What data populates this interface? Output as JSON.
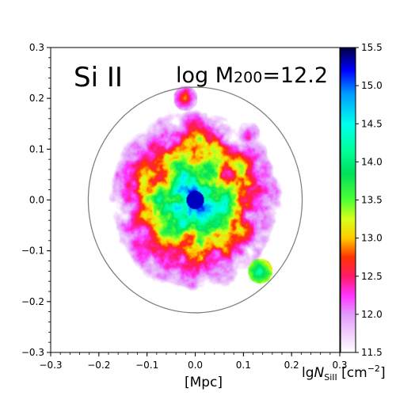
{
  "chart_data": {
    "type": "heatmap",
    "species_label": "Si II",
    "mass_label": {
      "prefix": "log M",
      "subscript": "200",
      "suffix": "=12.2"
    },
    "xlabel": "[Mpc]",
    "ylabel": "",
    "xlim": [
      -0.3,
      0.3
    ],
    "ylim": [
      -0.3,
      0.3
    ],
    "x_ticks": [
      -0.3,
      -0.2,
      -0.1,
      0.0,
      0.1,
      0.2,
      0.3
    ],
    "x_tick_labels": [
      "−0.3",
      "−0.2",
      "−0.1",
      "0.0",
      "0.1",
      "0.2",
      "0.3"
    ],
    "y_ticks": [
      -0.3,
      -0.2,
      -0.1,
      0.0,
      0.1,
      0.2,
      0.3
    ],
    "y_tick_labels": [
      "−0.3",
      "−0.2",
      "−0.1",
      "0.0",
      "0.1",
      "0.2",
      "0.3"
    ],
    "virial_circle": {
      "center": [
        0.0,
        0.0
      ],
      "radius": 0.222,
      "color": "#808080"
    },
    "colorbar": {
      "label_prefix": "lg",
      "label_N": "N",
      "label_sub": "SiII",
      "label_unit": " [cm",
      "label_exp": "−2",
      "label_close": "]",
      "min": 11.5,
      "max": 15.5,
      "ticks": [
        11.5,
        12.0,
        12.5,
        13.0,
        13.5,
        14.0,
        14.5,
        15.0,
        15.5
      ],
      "tick_labels": [
        "11.5",
        "12.0",
        "12.5",
        "13.0",
        "13.5",
        "14.0",
        "14.5",
        "15.0",
        "15.5"
      ],
      "colormap": "gist_ncar_r-like",
      "stops": [
        {
          "v": 11.5,
          "c": "#ffffff"
        },
        {
          "v": 12.0,
          "c": "#e39bfa"
        },
        {
          "v": 12.25,
          "c": "#ff33ff"
        },
        {
          "v": 12.5,
          "c": "#ff1a66"
        },
        {
          "v": 12.75,
          "c": "#ff3300"
        },
        {
          "v": 13.0,
          "c": "#ffcc00"
        },
        {
          "v": 13.25,
          "c": "#d8ff1a"
        },
        {
          "v": 13.5,
          "c": "#4dff33"
        },
        {
          "v": 13.85,
          "c": "#00e05a"
        },
        {
          "v": 14.15,
          "c": "#00ff99"
        },
        {
          "v": 14.5,
          "c": "#00ffee"
        },
        {
          "v": 14.9,
          "c": "#0099ff"
        },
        {
          "v": 15.2,
          "c": "#0000ff"
        },
        {
          "v": 15.5,
          "c": "#000040"
        }
      ]
    },
    "field_description": {
      "background_value": 11.5,
      "core": {
        "x": 0.0,
        "y": 0.0,
        "value": 15.3
      },
      "extent_value_at_edge": 12.0,
      "notable_clumps": [
        {
          "x": 0.135,
          "y": -0.14,
          "value": 14.2
        },
        {
          "x": -0.02,
          "y": 0.2,
          "value": 12.8
        },
        {
          "x": 0.11,
          "y": 0.13,
          "value": 12.6
        }
      ]
    }
  }
}
